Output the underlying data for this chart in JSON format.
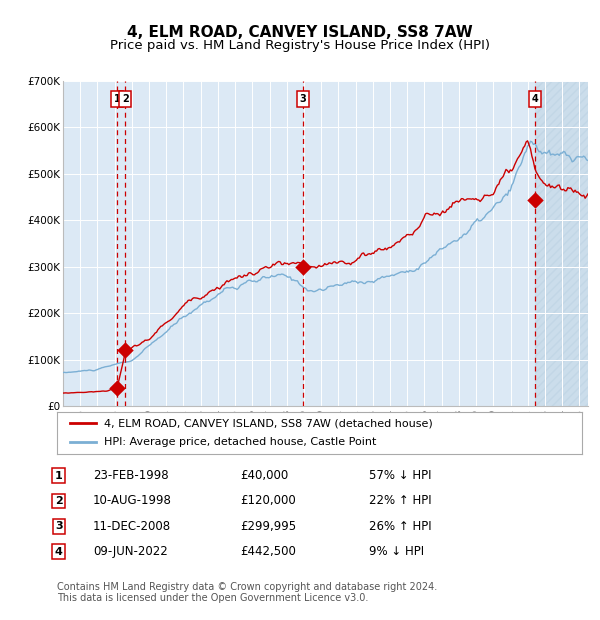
{
  "title": "4, ELM ROAD, CANVEY ISLAND, SS8 7AW",
  "subtitle": "Price paid vs. HM Land Registry's House Price Index (HPI)",
  "ylim": [
    0,
    700000
  ],
  "xlim_start": 1995.0,
  "xlim_end": 2025.5,
  "plot_bg_color": "#dce9f5",
  "grid_color": "#ffffff",
  "sale_dates": [
    1998.14,
    1998.61,
    2008.95,
    2022.44
  ],
  "sale_prices": [
    40000,
    120000,
    299995,
    442500
  ],
  "sale_labels": [
    "1",
    "2",
    "3",
    "4"
  ],
  "sale_date_strs": [
    "23-FEB-1998",
    "10-AUG-1998",
    "11-DEC-2008",
    "09-JUN-2022"
  ],
  "sale_price_strs": [
    "£40,000",
    "£120,000",
    "£299,995",
    "£442,500"
  ],
  "sale_hpi_strs": [
    "57% ↓ HPI",
    "22% ↑ HPI",
    "26% ↑ HPI",
    "9% ↓ HPI"
  ],
  "red_line_color": "#cc0000",
  "blue_line_color": "#7bafd4",
  "marker_color": "#cc0000",
  "vline_color": "#cc0000",
  "title_fontsize": 11,
  "subtitle_fontsize": 9.5,
  "tick_fontsize": 7.5,
  "legend_fontsize": 8,
  "table_fontsize": 8.5,
  "footnote_fontsize": 7,
  "ytick_labels": [
    "£0",
    "£100K",
    "£200K",
    "£300K",
    "£400K",
    "£500K",
    "£600K",
    "£700K"
  ],
  "ytick_values": [
    0,
    100000,
    200000,
    300000,
    400000,
    500000,
    600000,
    700000
  ],
  "xtick_years": [
    1995,
    1996,
    1997,
    1998,
    1999,
    2000,
    2001,
    2002,
    2003,
    2004,
    2005,
    2006,
    2007,
    2008,
    2009,
    2010,
    2011,
    2012,
    2013,
    2014,
    2015,
    2016,
    2017,
    2018,
    2019,
    2020,
    2021,
    2022,
    2023,
    2024,
    2025
  ],
  "legend_line1": "4, ELM ROAD, CANVEY ISLAND, SS8 7AW (detached house)",
  "legend_line2": "HPI: Average price, detached house, Castle Point",
  "footnote": "Contains HM Land Registry data © Crown copyright and database right 2024.\nThis data is licensed under the Open Government Licence v3.0."
}
